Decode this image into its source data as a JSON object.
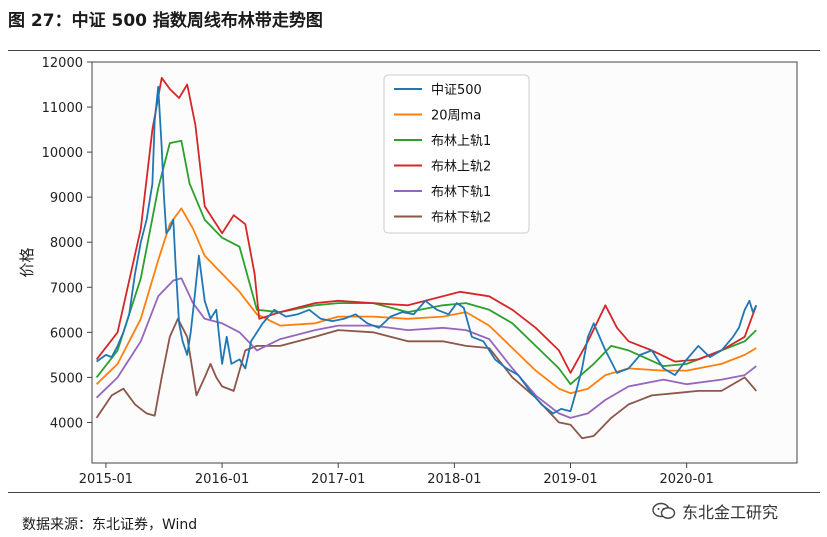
{
  "figure": {
    "title": "图 27：中证 500 指数周线布林带走势图",
    "source": "数据来源：东北证券，Wind",
    "watermark": "东北金工研究"
  },
  "colors": {
    "zz500": "#1f77b4",
    "ma20": "#ff7f0e",
    "upper1": "#2ca02c",
    "upper2": "#d62728",
    "lower1": "#9467bd",
    "lower2": "#8c564b"
  },
  "chart_data": {
    "type": "line",
    "title": "",
    "xlabel": "",
    "ylabel": "价格",
    "ylim": [
      3100,
      12000
    ],
    "xlim": [
      2014.88,
      2020.95
    ],
    "yticks": [
      "4000",
      "5000",
      "6000",
      "7000",
      "8000",
      "9000",
      "10000",
      "11000",
      "12000"
    ],
    "yticks_values": [
      4000,
      5000,
      6000,
      7000,
      8000,
      9000,
      10000,
      11000,
      12000
    ],
    "xticks": [
      "2015-01",
      "2016-01",
      "2017-01",
      "2018-01",
      "2019-01",
      "2020-01"
    ],
    "xticks_values": [
      2015,
      2016,
      2017,
      2018,
      2019,
      2020
    ],
    "legend_position": "top-center",
    "series": [
      {
        "name": "中证500",
        "key": "zz500",
        "x": [
          2014.92,
          2015.0,
          2015.05,
          2015.1,
          2015.15,
          2015.2,
          2015.25,
          2015.3,
          2015.35,
          2015.4,
          2015.42,
          2015.45,
          2015.48,
          2015.5,
          2015.52,
          2015.55,
          2015.58,
          2015.6,
          2015.63,
          2015.66,
          2015.7,
          2015.73,
          2015.76,
          2015.8,
          2015.85,
          2015.9,
          2015.95,
          2016.0,
          2016.04,
          2016.08,
          2016.15,
          2016.2,
          2016.25,
          2016.35,
          2016.45,
          2016.55,
          2016.65,
          2016.75,
          2016.85,
          2016.95,
          2017.05,
          2017.15,
          2017.25,
          2017.35,
          2017.45,
          2017.55,
          2017.65,
          2017.75,
          2017.85,
          2017.95,
          2018.02,
          2018.08,
          2018.15,
          2018.25,
          2018.35,
          2018.45,
          2018.55,
          2018.65,
          2018.75,
          2018.85,
          2018.92,
          2019.0,
          2019.05,
          2019.1,
          2019.15,
          2019.2,
          2019.3,
          2019.4,
          2019.5,
          2019.6,
          2019.7,
          2019.8,
          2019.9,
          2020.0,
          2020.1,
          2020.2,
          2020.3,
          2020.4,
          2020.45,
          2020.5,
          2020.54,
          2020.57,
          2020.6
        ],
        "values": [
          5350,
          5500,
          5450,
          5700,
          6000,
          6400,
          7300,
          8000,
          8500,
          9300,
          10700,
          11450,
          10100,
          9000,
          8200,
          8300,
          8500,
          7500,
          6200,
          5800,
          5500,
          6000,
          6700,
          7700,
          6700,
          6300,
          6500,
          5300,
          5900,
          5300,
          5400,
          5200,
          5800,
          6200,
          6500,
          6350,
          6400,
          6500,
          6300,
          6250,
          6300,
          6400,
          6200,
          6100,
          6350,
          6450,
          6400,
          6700,
          6500,
          6400,
          6650,
          6550,
          5900,
          5800,
          5400,
          5200,
          5050,
          4700,
          4400,
          4200,
          4300,
          4250,
          4700,
          5200,
          5900,
          6200,
          5600,
          5100,
          5200,
          5500,
          5600,
          5200,
          5050,
          5400,
          5700,
          5450,
          5600,
          5900,
          6100,
          6500,
          6700,
          6450,
          6600
        ]
      },
      {
        "name": "20周ma",
        "key": "ma20",
        "x": [
          2014.92,
          2015.1,
          2015.3,
          2015.45,
          2015.55,
          2015.65,
          2015.75,
          2015.85,
          2016.0,
          2016.15,
          2016.3,
          2016.5,
          2016.8,
          2017.0,
          2017.3,
          2017.6,
          2017.9,
          2018.1,
          2018.3,
          2018.5,
          2018.7,
          2018.9,
          2019.0,
          2019.15,
          2019.3,
          2019.5,
          2019.8,
          2020.0,
          2020.3,
          2020.5,
          2020.6
        ],
        "values": [
          4850,
          5300,
          6300,
          7600,
          8400,
          8750,
          8300,
          7700,
          7300,
          6900,
          6400,
          6150,
          6200,
          6350,
          6350,
          6300,
          6350,
          6450,
          6150,
          5650,
          5150,
          4750,
          4650,
          4750,
          5050,
          5200,
          5150,
          5150,
          5300,
          5500,
          5650
        ]
      },
      {
        "name": "布林上轨1",
        "key": "upper1",
        "x": [
          2014.92,
          2015.1,
          2015.3,
          2015.45,
          2015.55,
          2015.65,
          2015.72,
          2015.85,
          2016.0,
          2016.15,
          2016.3,
          2016.5,
          2016.8,
          2017.0,
          2017.3,
          2017.6,
          2017.9,
          2018.1,
          2018.3,
          2018.5,
          2018.7,
          2018.9,
          2019.0,
          2019.2,
          2019.35,
          2019.5,
          2019.8,
          2020.0,
          2020.3,
          2020.5,
          2020.6
        ],
        "values": [
          5000,
          5600,
          7200,
          9200,
          10200,
          10250,
          9300,
          8500,
          8100,
          7900,
          6500,
          6450,
          6600,
          6650,
          6650,
          6450,
          6600,
          6650,
          6500,
          6200,
          5700,
          5200,
          4850,
          5300,
          5700,
          5600,
          5250,
          5300,
          5600,
          5800,
          6050
        ]
      },
      {
        "name": "布林上轨2",
        "key": "upper2",
        "x": [
          2014.92,
          2015.1,
          2015.3,
          2015.4,
          2015.48,
          2015.55,
          2015.63,
          2015.7,
          2015.77,
          2015.85,
          2016.0,
          2016.1,
          2016.2,
          2016.28,
          2016.32,
          2016.5,
          2016.8,
          2017.0,
          2017.3,
          2017.6,
          2017.9,
          2018.05,
          2018.3,
          2018.5,
          2018.7,
          2018.9,
          2019.0,
          2019.15,
          2019.3,
          2019.4,
          2019.5,
          2019.7,
          2019.9,
          2020.1,
          2020.3,
          2020.5,
          2020.6
        ],
        "values": [
          5400,
          6000,
          8300,
          10500,
          11650,
          11400,
          11200,
          11500,
          10600,
          8800,
          8200,
          8600,
          8400,
          7300,
          6300,
          6450,
          6650,
          6700,
          6650,
          6600,
          6800,
          6900,
          6800,
          6500,
          6100,
          5600,
          5100,
          5800,
          6600,
          6100,
          5800,
          5600,
          5350,
          5400,
          5600,
          5900,
          6600
        ]
      },
      {
        "name": "布林下轨1",
        "key": "lower1",
        "x": [
          2014.92,
          2015.1,
          2015.3,
          2015.45,
          2015.58,
          2015.65,
          2015.75,
          2015.85,
          2016.0,
          2016.15,
          2016.3,
          2016.5,
          2016.8,
          2017.0,
          2017.3,
          2017.6,
          2017.9,
          2018.1,
          2018.3,
          2018.5,
          2018.7,
          2018.9,
          2019.0,
          2019.15,
          2019.3,
          2019.5,
          2019.8,
          2020.0,
          2020.3,
          2020.5,
          2020.6
        ],
        "values": [
          4550,
          5000,
          5800,
          6800,
          7150,
          7200,
          6650,
          6300,
          6200,
          6000,
          5600,
          5850,
          6050,
          6150,
          6150,
          6050,
          6100,
          6050,
          5850,
          5200,
          4600,
          4200,
          4100,
          4200,
          4500,
          4800,
          4950,
          4850,
          4950,
          5050,
          5250
        ]
      },
      {
        "name": "布林下轨2",
        "key": "lower2",
        "x": [
          2014.92,
          2015.05,
          2015.15,
          2015.25,
          2015.35,
          2015.42,
          2015.48,
          2015.55,
          2015.62,
          2015.7,
          2015.78,
          2015.85,
          2015.9,
          2015.95,
          2016.0,
          2016.1,
          2016.2,
          2016.3,
          2016.5,
          2016.8,
          2017.0,
          2017.3,
          2017.6,
          2017.9,
          2018.1,
          2018.3,
          2018.5,
          2018.7,
          2018.9,
          2019.0,
          2019.1,
          2019.2,
          2019.35,
          2019.5,
          2019.7,
          2019.9,
          2020.1,
          2020.3,
          2020.5,
          2020.6
        ],
        "values": [
          4100,
          4600,
          4750,
          4400,
          4200,
          4150,
          5000,
          5900,
          6300,
          5900,
          4600,
          5000,
          5300,
          5000,
          4800,
          4700,
          5600,
          5700,
          5700,
          5900,
          6050,
          6000,
          5800,
          5800,
          5700,
          5650,
          5000,
          4550,
          4000,
          3950,
          3650,
          3700,
          4100,
          4400,
          4600,
          4650,
          4700,
          4700,
          5000,
          4700
        ]
      }
    ]
  }
}
